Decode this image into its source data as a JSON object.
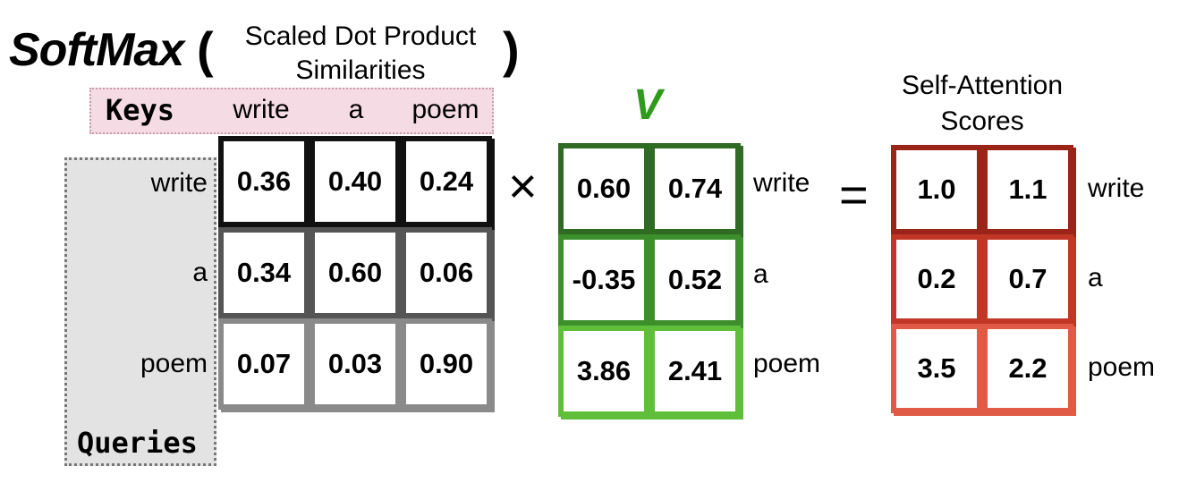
{
  "title": {
    "prefix": "SoftMax",
    "open_paren": "(",
    "subtitle_line1": "Scaled Dot Product",
    "subtitle_line2": "Similarities",
    "close_paren": ")"
  },
  "keys": {
    "label": "Keys",
    "headers": [
      "write",
      "a",
      "poem"
    ]
  },
  "queries": {
    "label": "Queries",
    "rows": [
      "write",
      "a",
      "poem"
    ]
  },
  "similarity_matrix": [
    [
      "0.36",
      "0.40",
      "0.24"
    ],
    [
      "0.34",
      "0.60",
      "0.06"
    ],
    [
      "0.07",
      "0.03",
      "0.90"
    ]
  ],
  "multiply_symbol": "×",
  "v": {
    "title": "V",
    "rows": [
      "write",
      "a",
      "poem"
    ],
    "matrix": [
      [
        "0.60",
        "0.74"
      ],
      [
        "-0.35",
        "0.52"
      ],
      [
        "3.86",
        "2.41"
      ]
    ]
  },
  "equals_symbol": "=",
  "scores": {
    "title_line1": "Self-Attention",
    "title_line2": "Scores",
    "rows": [
      "write",
      "a",
      "poem"
    ],
    "matrix": [
      [
        "1.0",
        "1.1"
      ],
      [
        "0.2",
        "0.7"
      ],
      [
        "3.5",
        "2.2"
      ]
    ]
  },
  "colors": {
    "sim_rows": [
      "#111111",
      "#555555",
      "#8a8a8a"
    ],
    "v_rows": [
      "#2f6b22",
      "#3d8f2c",
      "#5fbf3a"
    ],
    "score_rows": [
      "#9b2418",
      "#c23626",
      "#e05a45"
    ],
    "keys_bg": "#f5dbe4",
    "queries_bg": "#e3e3e3",
    "v_title": "#2e9b1c"
  }
}
